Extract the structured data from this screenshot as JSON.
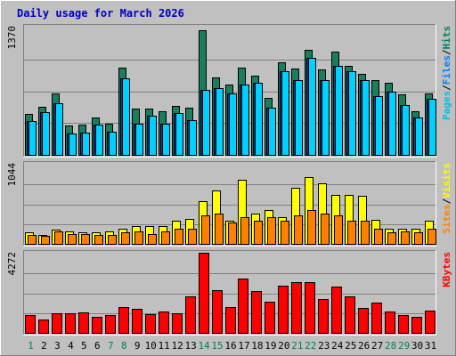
{
  "chart_data": {
    "type": "bar",
    "title": "Daily usage for March 2026",
    "categories": [
      "1",
      "2",
      "3",
      "4",
      "5",
      "6",
      "7",
      "8",
      "9",
      "10",
      "11",
      "12",
      "13",
      "14",
      "15",
      "16",
      "17",
      "18",
      "19",
      "20",
      "21",
      "22",
      "23",
      "24",
      "25",
      "26",
      "27",
      "28",
      "29",
      "30",
      "31"
    ],
    "weekend_days": [
      "1",
      "7",
      "8",
      "14",
      "15",
      "21",
      "22",
      "28",
      "29"
    ],
    "panels": [
      {
        "id": "top",
        "max_label": "1370",
        "ylim": [
          0,
          1370
        ],
        "legend": [
          {
            "text": "Pages",
            "color": "#00c0e0"
          },
          {
            "text": "/",
            "color": "#000000"
          },
          {
            "text": "Files",
            "color": "#0080ff"
          },
          {
            "text": "/",
            "color": "#000000"
          },
          {
            "text": "Hits",
            "color": "#008060"
          }
        ],
        "series": [
          {
            "name": "Hits",
            "color": "#1a7d5c",
            "values": [
              440,
              520,
              660,
              320,
              330,
              400,
              340,
              940,
              500,
              500,
              470,
              530,
              510,
              1340,
              830,
              760,
              940,
              850,
              610,
              1000,
              930,
              1130,
              920,
              1110,
              960,
              870,
              800,
              780,
              650,
              470,
              660
            ]
          },
          {
            "name": "Files",
            "color": "#1a3a9c",
            "values": [
              360,
              460,
              560,
              230,
              240,
              330,
              250,
              820,
              340,
              420,
              340,
              450,
              370,
              700,
              720,
              660,
              760,
              780,
              510,
              900,
              800,
              1040,
              800,
              960,
              900,
              800,
              630,
              680,
              540,
              400,
              600
            ]
          },
          {
            "name": "Pages",
            "color": "#00d0ff",
            "values": [
              360,
              460,
              560,
              230,
              240,
              330,
              250,
              820,
              340,
              420,
              340,
              450,
              370,
              700,
              720,
              660,
              760,
              780,
              510,
              900,
              800,
              1040,
              800,
              960,
              900,
              800,
              630,
              680,
              540,
              400,
              600
            ]
          }
        ]
      },
      {
        "id": "mid",
        "max_label": "1044",
        "ylim": [
          0,
          1044
        ],
        "legend": [
          {
            "text": "Sites",
            "color": "#ff8000"
          },
          {
            "text": "/",
            "color": "#000000"
          },
          {
            "text": "Visits",
            "color": "#ffff00"
          }
        ],
        "series": [
          {
            "name": "Visits",
            "color": "#ffff00",
            "values": [
              150,
              120,
              190,
              170,
              150,
              150,
              170,
              200,
              230,
              230,
              230,
              300,
              330,
              560,
              700,
              300,
              850,
              400,
              440,
              350,
              740,
              880,
              800,
              650,
              650,
              630,
              320,
              200,
              200,
              200,
              300
            ]
          },
          {
            "name": "Sites",
            "color": "#ff8000",
            "values": [
              120,
              100,
              170,
              130,
              130,
              120,
              120,
              150,
              170,
              130,
              160,
              200,
              200,
              370,
              400,
              280,
              350,
              310,
              350,
              300,
              370,
              450,
              400,
              370,
              300,
              300,
              200,
              150,
              170,
              150,
              200
            ]
          }
        ]
      },
      {
        "id": "bot",
        "max_label": "4272",
        "ylim": [
          0,
          4272
        ],
        "legend": [
          {
            "text": "KBytes",
            "color": "#ff0000"
          }
        ],
        "series": [
          {
            "name": "KBytes",
            "color": "#ff0000",
            "values": [
              980,
              720,
              1070,
              1050,
              1090,
              860,
              970,
              1370,
              1320,
              1030,
              1160,
              1060,
              1970,
              4300,
              2280,
              1390,
              2910,
              2260,
              1660,
              2530,
              2740,
              2740,
              1800,
              2480,
              1990,
              1360,
              1650,
              1140,
              970,
              860,
              1220
            ]
          }
        ]
      }
    ]
  }
}
